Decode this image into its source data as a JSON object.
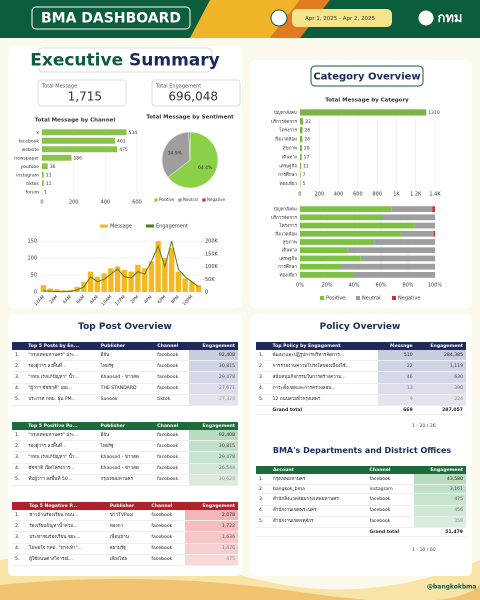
{
  "header": {
    "title": "BMA DASHBOARD",
    "date_range": "Apr 1, 2025 - Apr 2, 2025",
    "logo": "กทม"
  },
  "executive_summary": {
    "title_part1": "Executive",
    "title_part2": "Summary",
    "kpis": [
      {
        "label": "Total Message",
        "value": "1,715"
      },
      {
        "label": "Total Engagement",
        "value": "696,048"
      }
    ]
  },
  "category_overview": {
    "title": "Category Overview"
  },
  "chart_data": [
    {
      "type": "hbar",
      "title": "Total Message by Channel",
      "categories": [
        "x",
        "facebook",
        "website",
        "newspaper",
        "youtube",
        "instagram",
        "tiktok",
        "forum"
      ],
      "values": [
        534,
        461,
        475,
        186,
        36,
        11,
        11,
        1
      ],
      "color": "#8bc34a",
      "xlim": [
        0,
        600
      ],
      "xticks": [
        0,
        200,
        400,
        600
      ],
      "grid": true
    },
    {
      "type": "pie",
      "title": "Total Message by Sentiment",
      "categories": [
        "Positive",
        "Neutral",
        "Negative"
      ],
      "values": [
        64.4,
        34.9,
        0.7
      ],
      "value_labels": [
        "64.4%",
        "34.9%",
        null
      ],
      "colors": [
        "#8bd148",
        "#9e9e9e",
        "#d32f2f"
      ]
    },
    {
      "type": "combo",
      "categories": [
        "12AM",
        null,
        "2AM",
        null,
        "4AM",
        null,
        "6AM",
        null,
        "8AM",
        null,
        "10AM",
        null,
        "12PM",
        null,
        "2PM",
        null,
        "4PM",
        null,
        "6PM",
        null,
        "8PM",
        null,
        "10PM",
        null
      ],
      "series": [
        {
          "name": "Message",
          "color": "#f5b820",
          "values": [
            20,
            10,
            8,
            5,
            6,
            15,
            30,
            60,
            45,
            55,
            70,
            75,
            65,
            60,
            80,
            70,
            90,
            150,
            100,
            130,
            60,
            40,
            30,
            20
          ]
        },
        {
          "name": "Engagement",
          "color": "#4f7f22",
          "axis": "y2",
          "values": [
            5000,
            3000,
            2000,
            1500,
            2000,
            8000,
            20000,
            60000,
            40000,
            50000,
            70000,
            90000,
            60000,
            55000,
            80000,
            70000,
            120000,
            180000,
            100000,
            200000,
            90000,
            60000,
            40000,
            20000
          ]
        }
      ],
      "ylim": [
        0,
        165
      ],
      "yticks": [
        0,
        50,
        100,
        150
      ],
      "y2lim": [
        0,
        220000
      ],
      "y2ticks": [
        0,
        {
          "value": 50000,
          "label": "50K"
        },
        {
          "value": 100000,
          "label": "100K"
        },
        {
          "value": 150000,
          "label": "150K"
        },
        {
          "value": 200000,
          "label": "200K"
        }
      ],
      "legend": "top",
      "grid": true
    },
    {
      "type": "hbar",
      "title": "Total Message by Category",
      "categories": [
        "ปัญหาสังคม",
        "บริการจัดการ",
        "โครงการ",
        "สิ่งแวดล้อม",
        "สุขภาพ",
        "เดินทาง",
        "เศรษฐกิจ",
        "การศึกษา",
        "ท่องเที่ยว"
      ],
      "values": [
        1310,
        33,
        26,
        24,
        20,
        17,
        11,
        7,
        5
      ],
      "color": "#7cb342",
      "xlim": [
        0,
        1400
      ],
      "xticks": [
        0,
        200,
        400,
        600,
        800,
        {
          "value": 1000,
          "label": "1K"
        },
        {
          "value": 1200,
          "label": "1.2K"
        },
        {
          "value": 1400,
          "label": "1.4K"
        }
      ],
      "grid": true
    },
    {
      "type": "stacked_hbar",
      "categories": [
        "ปัญหาสังคม",
        "บริการจัดการ",
        "โครงการ",
        "สิ่งแวดล้อม",
        "สุขภาพ",
        "เดินทาง",
        "เศรษฐกิจ",
        "การศึกษา",
        "ท่องเที่ยว"
      ],
      "series": [
        {
          "name": "Positive",
          "color": "#7cc142",
          "values": [
            68,
            60,
            85,
            75,
            55,
            35,
            45,
            30,
            40
          ]
        },
        {
          "name": "Neutral",
          "color": "#9e9e9e",
          "values": [
            30,
            40,
            15,
            24,
            45,
            65,
            55,
            70,
            60
          ]
        },
        {
          "name": "Negative",
          "color": "#d32f2f",
          "values": [
            2,
            0,
            0,
            1,
            0,
            0,
            0,
            0,
            0
          ]
        }
      ],
      "xlim": [
        0,
        100
      ],
      "xticks": [
        {
          "value": 0,
          "label": "0%"
        },
        {
          "value": 20,
          "label": "20%"
        },
        {
          "value": 40,
          "label": "40%"
        },
        {
          "value": 60,
          "label": "60%"
        },
        {
          "value": 80,
          "label": "80%"
        },
        {
          "value": 100,
          "label": "100%"
        }
      ],
      "legend": "bottom",
      "grid": true
    }
  ],
  "top_post_overview": {
    "title": "Top Post Overview",
    "tables": [
      {
        "columns": [
          "Top 5 Posts by En...",
          "Publisher",
          "Channel",
          "Engagement"
        ],
        "rows": [
          [
            "1.",
            "\"กรุงเทพมหานคร\" ประ...",
            "อีจัน",
            "facebook",
            "92,408"
          ],
          [
            "2.",
            "รองผู้ว่าฯ ลงพื้นที่...",
            "ไทยรัฐ",
            "facebook",
            "30,815"
          ],
          [
            "3.",
            "\"กทม.เร่งแก้ปัญหา\" น้ำ...",
            "Khaosod - ข่าวสด",
            "facebook",
            "29,478"
          ],
          [
            "4.",
            "\"ผู้ว่าฯ ชัชชาติ\" เผย...",
            "THE STANDARD",
            "facebook",
            "27,671"
          ],
          [
            "5.",
            "ประกาศ กทม. ฝุ่น PM...",
            "Sanook",
            "tiktok",
            "27,324"
          ]
        ]
      },
      {
        "columns": [
          "Top 5 Positive Po...",
          "Publisher",
          "Channel",
          "Engagement"
        ],
        "rows": [
          [
            "1.",
            "\"กรุงเทพมหานคร\" ประ...",
            "อีจัน",
            "facebook",
            "92,408"
          ],
          [
            "2.",
            "รองผู้ว่าฯ ลงพื้นที่...",
            "ไทยรัฐ",
            "facebook",
            "30,815"
          ],
          [
            "3.",
            "\"กทม.เร่งแก้ปัญหา\" น้ำ...",
            "Khaosod - ข่าวสด",
            "facebook",
            "29,478"
          ],
          [
            "4.",
            "ชัชชาติ เปิดโครงการ...",
            "Khaosod - ข่าวสด",
            "facebook",
            "26,544"
          ],
          [
            "5.",
            "ทีมผู้ว่าฯ ลงพื้นที่ 50...",
            "กรุงเทพมหานคร",
            "facebook",
            "20,624"
          ]
        ]
      },
      {
        "columns": [
          "Top 5 Negative P...",
          "Publisher",
          "Channel",
          "Engagement"
        ],
        "rows": [
          [
            "1.",
            "ชาวบ้านร้องเรียน ถนน...",
            "ข่าวTVPool",
            "facebook",
            "2,078"
          ],
          [
            "2.",
            "ร้องเรียนปัญหาน้ำท่วม...",
            "ทองกา",
            "facebook",
            "1,722"
          ],
          [
            "3.",
            "ประชาชนร้องเรียน ขยะ...",
            "เพื่อนบ้าน",
            "facebook",
            "1,636"
          ],
          [
            "4.",
            "ไม่พอใจ กทม. \"ทางเท้า\"...",
            "สยามรัฐ",
            "facebook",
            "1,476"
          ],
          [
            "5.",
            "ผู้ใช้ถนนต่างวิจารณ์...",
            "เสียงไทย",
            "facebook",
            "475"
          ]
        ]
      }
    ]
  },
  "policy_overview": {
    "title": "Policy Overview",
    "columns": [
      "Top Policy by Engagement",
      "Message",
      "Engagement"
    ],
    "rows": [
      [
        "1.",
        "พัฒนาและปฏิรูปการบริหารจัดการ...",
        "510",
        "284,385"
      ],
      [
        "2.",
        "การรายงานความโปร่งใสของเมืองใช้...",
        "22",
        "1,119"
      ],
      [
        "3.",
        "สนับสนุนกิจกรรมในการสร้างความ...",
        "46",
        "630"
      ],
      [
        "4.",
        "ภาระตั้งเขตและการตรวจสอบ...",
        "13",
        "390"
      ],
      [
        "5.",
        "12 ถนนสวยทั่วกรุงเทพฯ",
        "9",
        "224"
      ]
    ],
    "grand_total": {
      "label": "Grand total",
      "message": "669",
      "engagement": "287,057"
    },
    "pagination": "1 - 20 / 26"
  },
  "departments": {
    "title": "BMA's Departments and District Offices",
    "columns": [
      "Account",
      "Channel",
      "Engagement"
    ],
    "rows": [
      [
        "1.",
        "กรุงเทพมหานคร",
        "facebook",
        "43,580"
      ],
      [
        "2.",
        "bangkok_bma",
        "instagram",
        "3,161"
      ],
      [
        "3.",
        "สำนักสิ่งแวดล้อมกรุงเทพมหานคร",
        "facebook",
        "475"
      ],
      [
        "4.",
        "สำนักงานเขตพระนคร",
        "facebook",
        "456"
      ],
      [
        "5.",
        "สำนักงานเขตจตุจักร",
        "facebook",
        "358"
      ]
    ],
    "grand_total": {
      "label": "Grand total",
      "engagement": "51,479"
    },
    "pagination": "1 - 10 / 60"
  },
  "footer": {
    "handle": "@bangkokbma"
  }
}
